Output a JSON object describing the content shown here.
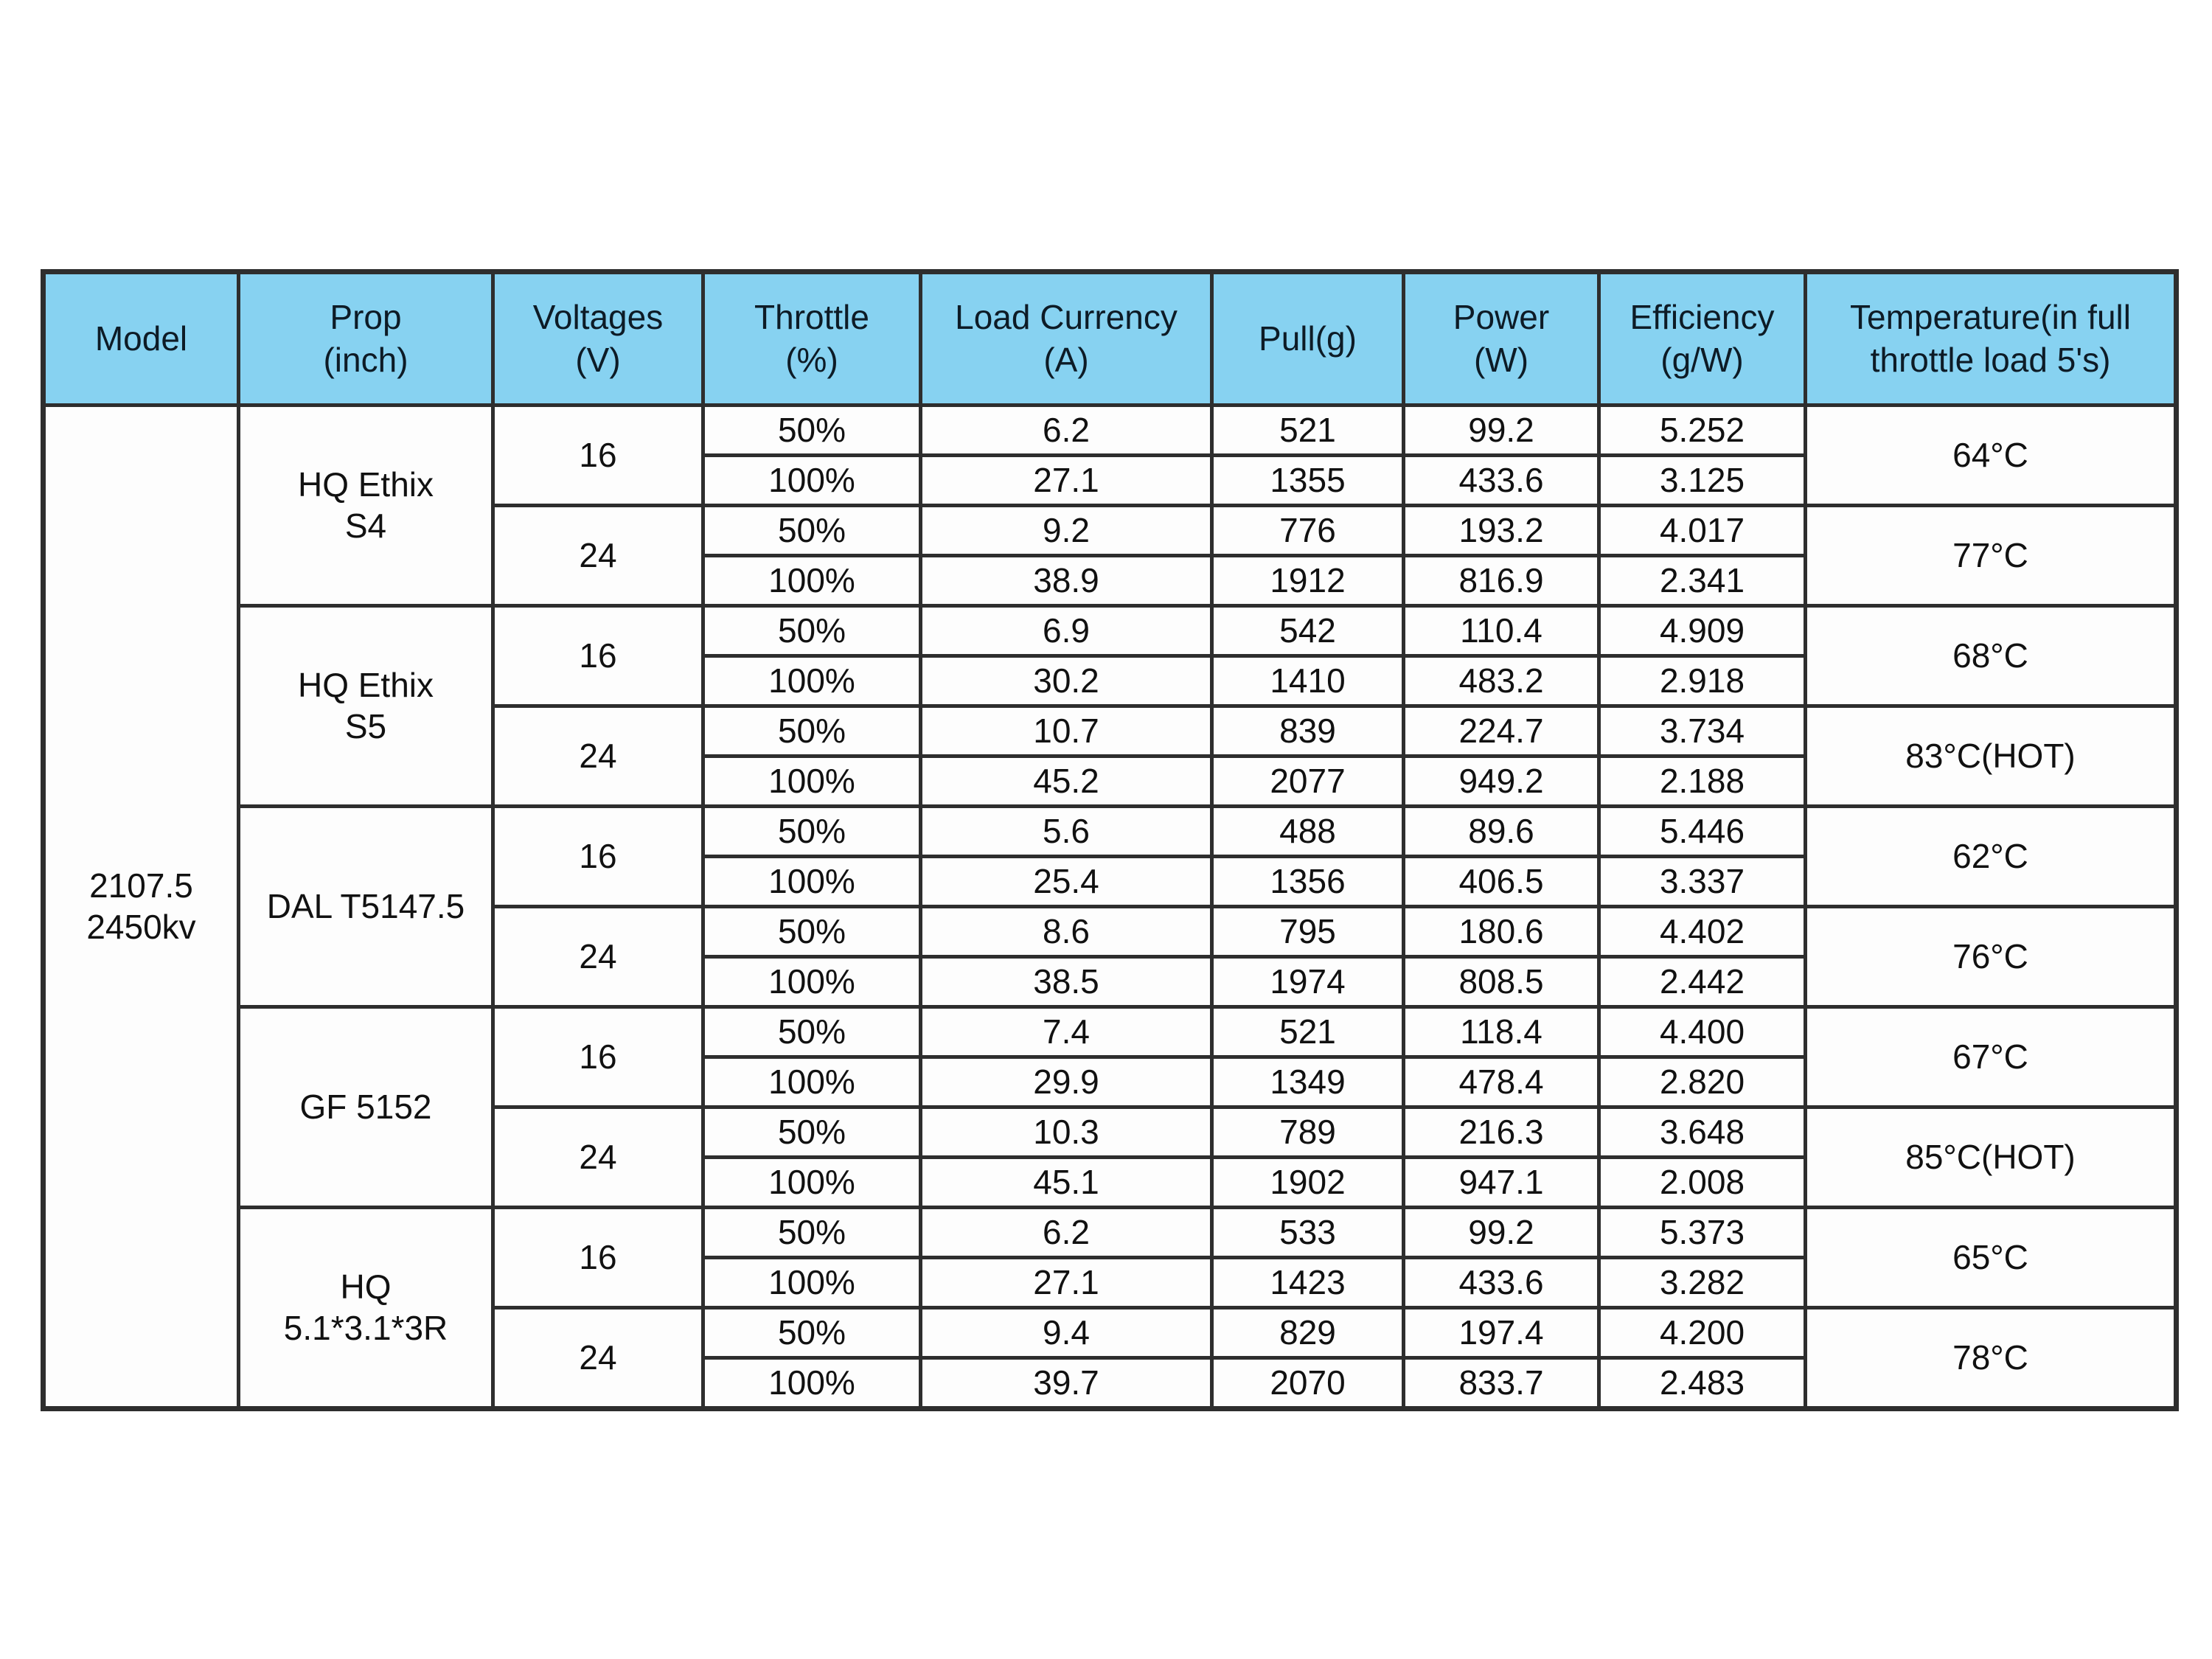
{
  "colors": {
    "header_bg": "#87d2f1",
    "border": "#2e2e2e",
    "text": "#111111",
    "page_bg": "#ffffff"
  },
  "table": {
    "headers": {
      "model": "Model",
      "prop": "Prop\n(inch)",
      "voltages": "Voltages\n(V)",
      "throttle": "Throttle\n(%)",
      "load_currency": "Load Currency\n(A)",
      "pull": "Pull(g)",
      "power": "Power\n(W)",
      "efficiency": "Efficiency\n(g/W)",
      "temperature": "Temperature(in full\nthrottle load 5's)"
    },
    "model": "2107.5\n2450kv",
    "props": [
      {
        "name": "HQ Ethix\nS4",
        "voltages": [
          {
            "label": "16",
            "temp": "64°C",
            "rows": [
              [
                "50%",
                "6.2",
                "521",
                "99.2",
                "5.252"
              ],
              [
                "100%",
                "27.1",
                "1355",
                "433.6",
                "3.125"
              ]
            ]
          },
          {
            "label": "24",
            "temp": "77°C",
            "rows": [
              [
                "50%",
                "9.2",
                "776",
                "193.2",
                "4.017"
              ],
              [
                "100%",
                "38.9",
                "1912",
                "816.9",
                "2.341"
              ]
            ]
          }
        ]
      },
      {
        "name": "HQ Ethix\nS5",
        "voltages": [
          {
            "label": "16",
            "temp": "68°C",
            "rows": [
              [
                "50%",
                "6.9",
                "542",
                "110.4",
                "4.909"
              ],
              [
                "100%",
                "30.2",
                "1410",
                "483.2",
                "2.918"
              ]
            ]
          },
          {
            "label": "24",
            "temp": "83°C(HOT)",
            "rows": [
              [
                "50%",
                "10.7",
                "839",
                "224.7",
                "3.734"
              ],
              [
                "100%",
                "45.2",
                "2077",
                "949.2",
                "2.188"
              ]
            ]
          }
        ]
      },
      {
        "name": "DAL T5147.5",
        "voltages": [
          {
            "label": "16",
            "temp": "62°C",
            "rows": [
              [
                "50%",
                "5.6",
                "488",
                "89.6",
                "5.446"
              ],
              [
                "100%",
                "25.4",
                "1356",
                "406.5",
                "3.337"
              ]
            ]
          },
          {
            "label": "24",
            "temp": "76°C",
            "rows": [
              [
                "50%",
                "8.6",
                "795",
                "180.6",
                "4.402"
              ],
              [
                "100%",
                "38.5",
                "1974",
                "808.5",
                "2.442"
              ]
            ]
          }
        ]
      },
      {
        "name": "GF 5152",
        "voltages": [
          {
            "label": "16",
            "temp": "67°C",
            "rows": [
              [
                "50%",
                "7.4",
                "521",
                "118.4",
                "4.400"
              ],
              [
                "100%",
                "29.9",
                "1349",
                "478.4",
                "2.820"
              ]
            ]
          },
          {
            "label": "24",
            "temp": "85°C(HOT)",
            "rows": [
              [
                "50%",
                "10.3",
                "789",
                "216.3",
                "3.648"
              ],
              [
                "100%",
                "45.1",
                "1902",
                "947.1",
                "2.008"
              ]
            ]
          }
        ]
      },
      {
        "name": "HQ\n5.1*3.1*3R",
        "voltages": [
          {
            "label": "16",
            "temp": "65°C",
            "rows": [
              [
                "50%",
                "6.2",
                "533",
                "99.2",
                "5.373"
              ],
              [
                "100%",
                "27.1",
                "1423",
                "433.6",
                "3.282"
              ]
            ]
          },
          {
            "label": "24",
            "temp": "78°C",
            "rows": [
              [
                "50%",
                "9.4",
                "829",
                "197.4",
                "4.200"
              ],
              [
                "100%",
                "39.7",
                "2070",
                "833.7",
                "2.483"
              ]
            ]
          }
        ]
      }
    ]
  }
}
